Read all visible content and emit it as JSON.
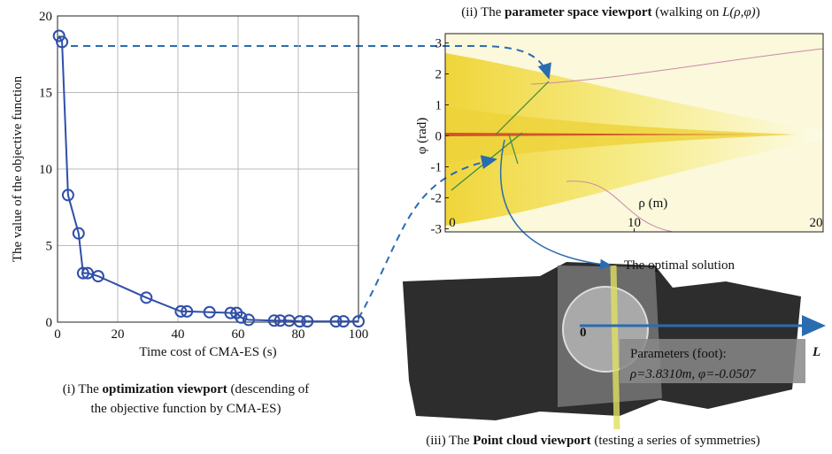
{
  "chart_data": [
    {
      "type": "line",
      "x_label": "Time cost of CMA-ES (s)",
      "y_label": "The value of the objective function",
      "x": [
        0.5,
        1.5,
        3.5,
        7,
        8.5,
        10,
        13.5,
        29.5,
        41,
        43,
        50.5,
        57.5,
        59.5,
        61,
        63.5,
        72,
        74,
        77,
        80.5,
        83,
        92.5,
        95,
        100
      ],
      "values": [
        18.7,
        18.3,
        8.3,
        5.8,
        3.2,
        3.2,
        3.0,
        1.6,
        0.7,
        0.7,
        0.65,
        0.6,
        0.6,
        0.3,
        0.15,
        0.1,
        0.1,
        0.1,
        0.05,
        0.05,
        0.05,
        0.05,
        0.05
      ],
      "color": "#2f4fa8",
      "marker": "circle",
      "xlim": [
        0,
        100
      ],
      "ylim": [
        0,
        20
      ],
      "xticks": [
        0,
        20,
        40,
        60,
        80,
        100
      ],
      "yticks": [
        0,
        5,
        10,
        15,
        20
      ],
      "grid": true
    },
    {
      "type": "contour",
      "x_label": "ρ (m)",
      "y_label": "φ (rad)",
      "xlim": [
        0,
        20
      ],
      "ylim": [
        -3.1,
        3.3
      ],
      "xticks": [
        0,
        10,
        20
      ],
      "yticks": [
        -3,
        -2,
        -1,
        0,
        1,
        2,
        3
      ]
    }
  ],
  "captions": [
    {
      "lines": [
        [
          {
            "text": "(i) The "
          },
          {
            "text": "optimization viewport",
            "bold": true
          },
          {
            "text": " (descending of"
          }
        ],
        [
          {
            "text": "the objective function by CMA-ES)"
          }
        ]
      ]
    },
    {
      "lines": [
        [
          {
            "text": "(ii) The "
          },
          {
            "text": "parameter space viewport",
            "bold": true
          },
          {
            "text": " (walking on "
          },
          {
            "text": "L(ρ,φ)",
            "italic": true
          },
          {
            "text": ")"
          }
        ]
      ]
    },
    {
      "lines": [
        [
          {
            "text": "(iii) The "
          },
          {
            "text": "Point cloud viewport",
            "bold": true
          },
          {
            "text": " (testing a series of symmetries)"
          }
        ]
      ]
    }
  ],
  "point_cloud": {
    "optimal_label": "The optimal solution",
    "origin_label": "0",
    "axis_label": "L",
    "params_title": "Parameters (foot):",
    "params_value": "ρ=3.8310m, φ=-0.0507"
  }
}
